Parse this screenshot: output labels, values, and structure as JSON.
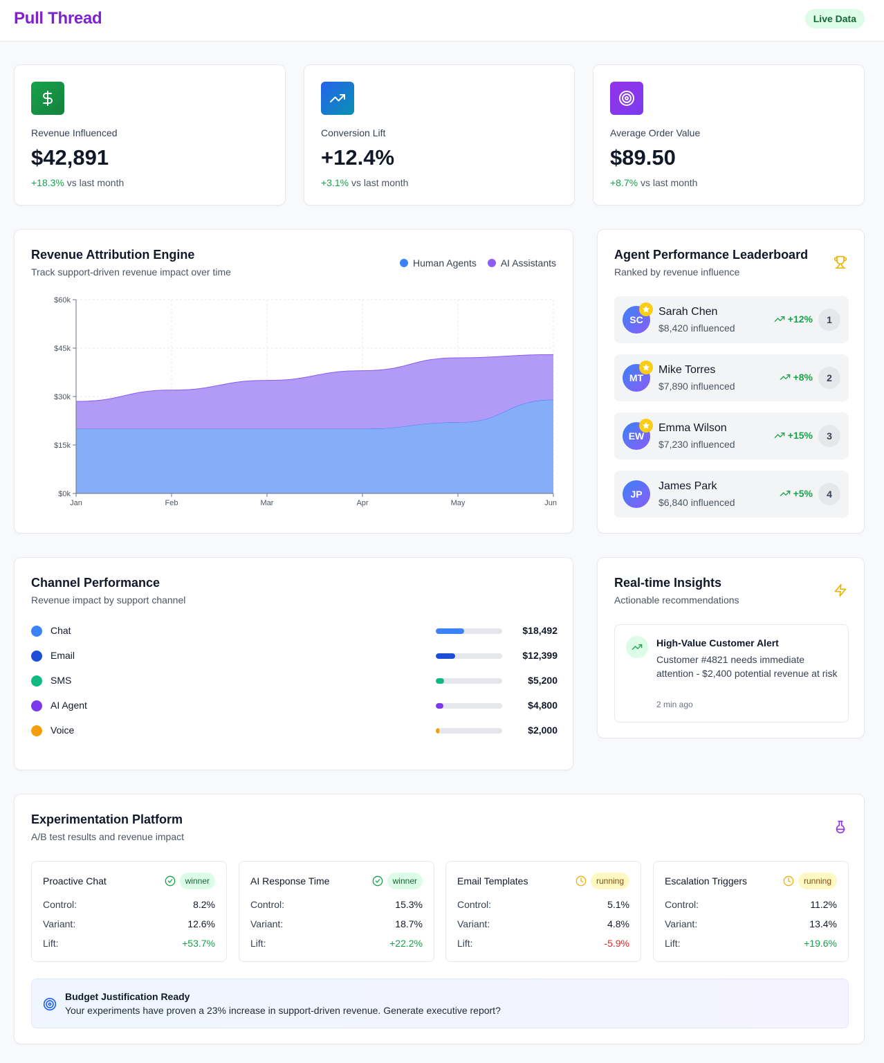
{
  "header": {
    "brand": "Pull Thread",
    "badge": "Live Data"
  },
  "stats": [
    {
      "label": "Revenue Influenced",
      "value": "$42,891",
      "change": "+18.3%",
      "suffix": "vs last month",
      "icon": "dollar-icon",
      "gradient": [
        "#16a34a",
        "#15803d"
      ]
    },
    {
      "label": "Conversion Lift",
      "value": "+12.4%",
      "change": "+3.1%",
      "suffix": "vs last month",
      "icon": "trending-up-icon",
      "gradient": [
        "#2563eb",
        "#0891b2"
      ]
    },
    {
      "label": "Average Order Value",
      "value": "$89.50",
      "change": "+8.7%",
      "suffix": "vs last month",
      "icon": "target-icon",
      "gradient": [
        "#9333ea",
        "#7c3aed"
      ]
    }
  ],
  "attribution": {
    "title": "Revenue Attribution Engine",
    "subtitle": "Track support-driven revenue impact over time",
    "legend": [
      {
        "name": "Human Agents",
        "color": "#3b82f6"
      },
      {
        "name": "AI Assistants",
        "color": "#8b5cf6"
      }
    ]
  },
  "chart_data": {
    "type": "area",
    "stacked": true,
    "categories": [
      "Jan",
      "Feb",
      "Mar",
      "Apr",
      "May",
      "Jun"
    ],
    "series": [
      {
        "name": "Human Agents",
        "values": [
          20000,
          20000,
          20000,
          20000,
          22000,
          29000
        ],
        "color": "#86aef8"
      },
      {
        "name": "AI Assistants",
        "values": [
          8500,
          12000,
          15000,
          18000,
          20000,
          14000
        ],
        "color": "#b29af7"
      }
    ],
    "ylim": [
      0,
      60000
    ],
    "yticks": [
      "$0k",
      "$15k",
      "$30k",
      "$45k",
      "$60k"
    ],
    "ytick_values": [
      0,
      15000,
      30000,
      45000,
      60000
    ],
    "grid": true
  },
  "leaderboard": {
    "title": "Agent Performance Leaderboard",
    "subtitle": "Ranked by revenue influence",
    "agents": [
      {
        "initials": "SC",
        "name": "Sarah Chen",
        "amount": "$8,420 influenced",
        "trend": "+12%",
        "rank": "1",
        "star": true
      },
      {
        "initials": "MT",
        "name": "Mike Torres",
        "amount": "$7,890 influenced",
        "trend": "+8%",
        "rank": "2",
        "star": true
      },
      {
        "initials": "EW",
        "name": "Emma Wilson",
        "amount": "$7,230 influenced",
        "trend": "+15%",
        "rank": "3",
        "star": true
      },
      {
        "initials": "JP",
        "name": "James Park",
        "amount": "$6,840 influenced",
        "trend": "+5%",
        "rank": "4",
        "star": false
      }
    ]
  },
  "channels": {
    "title": "Channel Performance",
    "subtitle": "Revenue impact by support channel",
    "items": [
      {
        "name": "Chat",
        "value": "$18,492",
        "share": 0.43,
        "color": "#3b82f6"
      },
      {
        "name": "Email",
        "value": "$12,399",
        "share": 0.29,
        "color": "#1d4ed8"
      },
      {
        "name": "SMS",
        "value": "$5,200",
        "share": 0.12,
        "color": "#10b981"
      },
      {
        "name": "AI Agent",
        "value": "$4,800",
        "share": 0.11,
        "color": "#7c3aed"
      },
      {
        "name": "Voice",
        "value": "$2,000",
        "share": 0.05,
        "color": "#f59e0b"
      }
    ]
  },
  "insights": {
    "title": "Real-time Insights",
    "subtitle": "Actionable recommendations",
    "items": [
      {
        "title": "High-Value Customer Alert",
        "text": "Customer #4821 needs immediate attention - $2,400 potential revenue at risk",
        "time": "2 min ago"
      }
    ]
  },
  "experiments": {
    "title": "Experimentation Platform",
    "subtitle": "A/B test results and revenue impact",
    "labels": {
      "control": "Control:",
      "variant": "Variant:",
      "lift": "Lift:"
    },
    "tests": [
      {
        "name": "Proactive Chat",
        "status": "winner",
        "control": "8.2%",
        "variant": "12.6%",
        "lift": "+53.7%",
        "lift_positive": true
      },
      {
        "name": "AI Response Time",
        "status": "winner",
        "control": "15.3%",
        "variant": "18.7%",
        "lift": "+22.2%",
        "lift_positive": true
      },
      {
        "name": "Email Templates",
        "status": "running",
        "control": "5.1%",
        "variant": "4.8%",
        "lift": "-5.9%",
        "lift_positive": false
      },
      {
        "name": "Escalation Triggers",
        "status": "running",
        "control": "11.2%",
        "variant": "13.4%",
        "lift": "+19.6%",
        "lift_positive": true
      }
    ],
    "banner": {
      "title": "Budget Justification Ready",
      "text": "Your experiments have proven a 23% increase in support-driven revenue. Generate executive report?"
    }
  }
}
